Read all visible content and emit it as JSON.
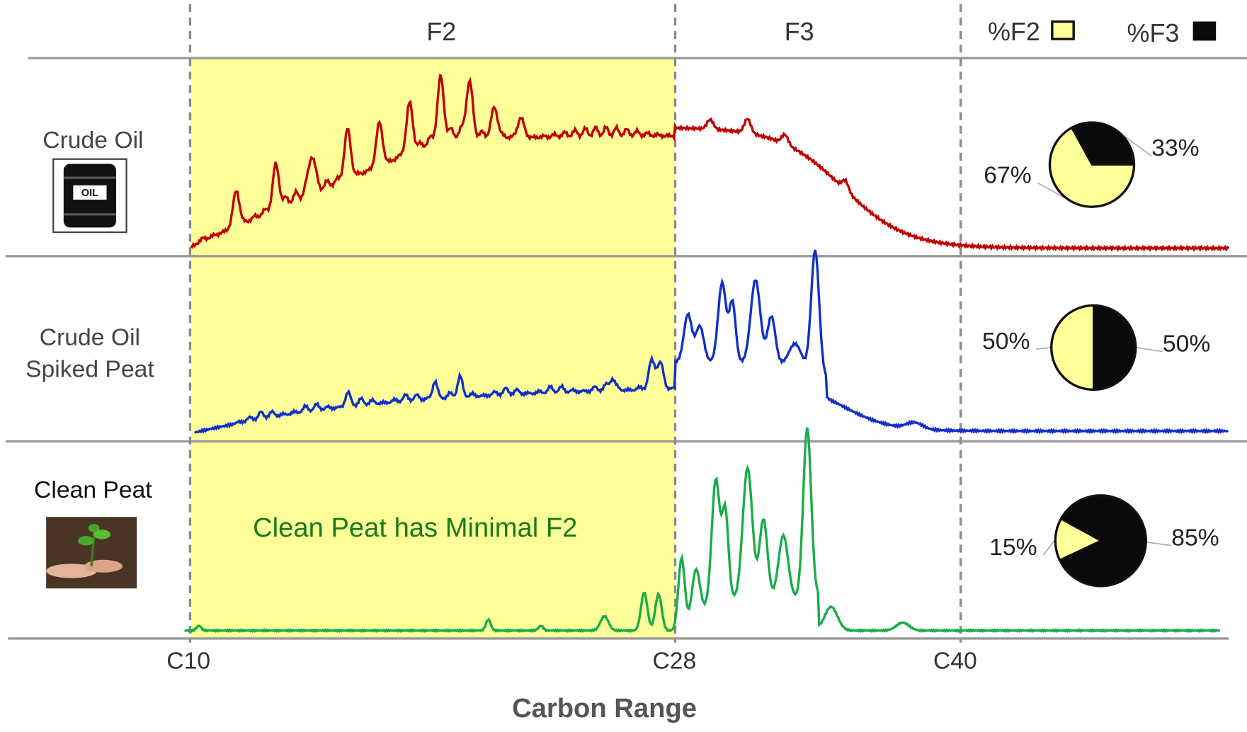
{
  "header": {
    "f2": "F2",
    "f3": "F3"
  },
  "legend": [
    {
      "label": "%F2",
      "color": "#ffff99"
    },
    {
      "label": "%F3",
      "color": "#0a0a0a"
    }
  ],
  "rows": [
    {
      "label": [
        "Crude Oil"
      ],
      "icon_text": "OIL",
      "trace_color": "#c00000",
      "pie": {
        "values": [
          67,
          33
        ],
        "value_labels": [
          "67%",
          "33%"
        ]
      }
    },
    {
      "label": [
        "Crude Oil",
        "Spiked Peat"
      ],
      "trace_color": "#1030c8",
      "pie": {
        "values": [
          50,
          50
        ],
        "value_labels": [
          "50%",
          "50%"
        ]
      }
    },
    {
      "label": [
        "Clean Peat"
      ],
      "trace_color": "#1aab4a",
      "pie": {
        "values": [
          15,
          85
        ],
        "value_labels": [
          "15%",
          "85%"
        ]
      }
    }
  ],
  "annotation": "Clean Peat has Minimal F2",
  "x_axis": {
    "title": "Carbon Range",
    "ticks": [
      "C10",
      "C28",
      "C40"
    ]
  }
}
